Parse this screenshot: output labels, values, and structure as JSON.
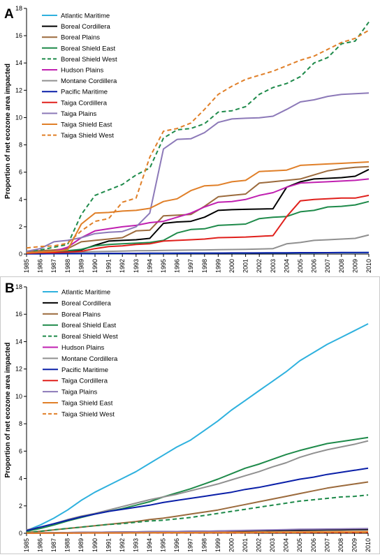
{
  "chart_data": [
    {
      "panel": "A",
      "type": "line",
      "ylabel": "Proportion of net ecozone area impacted",
      "ylim": [
        0,
        18
      ],
      "yticks": [
        0,
        2,
        4,
        6,
        8,
        10,
        12,
        14,
        16,
        18
      ],
      "x": [
        "1985",
        "1986",
        "1987",
        "1988",
        "1989",
        "1990",
        "1991",
        "1992",
        "1993",
        "1994",
        "1995",
        "1996",
        "1997",
        "1998",
        "1999",
        "2000",
        "2001",
        "2002",
        "2003",
        "2004",
        "2005",
        "2006",
        "2007",
        "2008",
        "2009",
        "2010"
      ],
      "grid": false,
      "legend": "top-left",
      "series": [
        {
          "name": "Atlantic Maritime",
          "color": "#2EB1DE",
          "dash": false,
          "values": [
            0.02,
            0.02,
            0.03,
            0.03,
            0.03,
            0.04,
            0.04,
            0.04,
            0.05,
            0.05,
            0.05,
            0.06,
            0.06,
            0.06,
            0.07,
            0.07,
            0.07,
            0.08,
            0.08,
            0.08,
            0.09,
            0.09,
            0.1,
            0.1,
            0.1,
            0.11
          ]
        },
        {
          "name": "Boreal Cordillera",
          "color": "#000000",
          "dash": false,
          "values": [
            0.05,
            0.1,
            0.15,
            0.2,
            0.3,
            0.65,
            0.95,
            1.0,
            1.05,
            1.15,
            2.25,
            2.35,
            2.4,
            2.7,
            3.2,
            3.25,
            3.28,
            3.3,
            3.32,
            4.9,
            5.3,
            5.5,
            5.55,
            5.6,
            5.7,
            6.2
          ]
        },
        {
          "name": "Boreal Plains",
          "color": "#9B6A3C",
          "dash": false,
          "values": [
            0.2,
            0.25,
            0.3,
            0.4,
            0.9,
            1.0,
            1.1,
            1.2,
            1.7,
            1.75,
            2.8,
            2.85,
            2.9,
            3.5,
            4.2,
            4.3,
            4.4,
            5.2,
            5.3,
            5.4,
            5.5,
            5.8,
            6.1,
            6.25,
            6.35,
            6.4
          ]
        },
        {
          "name": "Boreal Shield East",
          "color": "#1E8A4A",
          "dash": false,
          "values": [
            0.1,
            0.15,
            0.2,
            0.25,
            0.35,
            0.6,
            0.7,
            0.75,
            0.8,
            0.85,
            1.0,
            1.55,
            1.8,
            1.85,
            2.1,
            2.15,
            2.2,
            2.6,
            2.7,
            2.75,
            3.1,
            3.2,
            3.45,
            3.5,
            3.6,
            3.85
          ]
        },
        {
          "name": "Boreal Shield West",
          "color": "#1E8A4A",
          "dash": true,
          "values": [
            0.2,
            0.3,
            0.5,
            0.7,
            2.9,
            4.3,
            4.7,
            5.1,
            5.8,
            6.3,
            8.5,
            9.1,
            9.2,
            9.55,
            10.4,
            10.5,
            10.8,
            11.7,
            12.2,
            12.5,
            13.0,
            14.0,
            14.4,
            15.4,
            15.6,
            17.0
          ]
        },
        {
          "name": "Hudson Plains",
          "color": "#C020B0",
          "dash": false,
          "values": [
            0.1,
            0.15,
            0.2,
            0.5,
            1.2,
            1.7,
            1.85,
            2.0,
            2.1,
            2.3,
            2.4,
            2.7,
            3.0,
            3.45,
            3.8,
            3.85,
            4.0,
            4.3,
            4.5,
            4.9,
            5.2,
            5.25,
            5.3,
            5.35,
            5.4,
            5.5
          ]
        },
        {
          "name": "Montane Cordillera",
          "color": "#909090",
          "dash": false,
          "values": [
            0.05,
            0.08,
            0.1,
            0.12,
            0.15,
            0.18,
            0.2,
            0.22,
            0.24,
            0.25,
            0.27,
            0.28,
            0.29,
            0.3,
            0.32,
            0.33,
            0.35,
            0.37,
            0.4,
            0.75,
            0.85,
            1.0,
            1.05,
            1.1,
            1.15,
            1.4
          ]
        },
        {
          "name": "Pacific Maritime",
          "color": "#0A1FA8",
          "dash": false,
          "values": [
            0.02,
            0.02,
            0.03,
            0.03,
            0.04,
            0.04,
            0.05,
            0.05,
            0.05,
            0.06,
            0.06,
            0.06,
            0.07,
            0.07,
            0.07,
            0.08,
            0.08,
            0.08,
            0.09,
            0.09,
            0.1,
            0.1,
            0.1,
            0.11,
            0.11,
            0.12
          ]
        },
        {
          "name": "Taiga Cordillera",
          "color": "#E0201C",
          "dash": false,
          "values": [
            0.05,
            0.1,
            0.1,
            0.15,
            0.2,
            0.4,
            0.55,
            0.6,
            0.7,
            0.75,
            0.95,
            1.0,
            1.05,
            1.1,
            1.2,
            1.22,
            1.25,
            1.3,
            1.35,
            2.75,
            3.9,
            4.0,
            4.05,
            4.1,
            4.1,
            4.3
          ]
        },
        {
          "name": "Taiga Plains",
          "color": "#8C79B8",
          "dash": false,
          "values": [
            0.2,
            0.4,
            0.9,
            1.0,
            1.2,
            1.5,
            1.6,
            1.65,
            2.0,
            3.0,
            7.7,
            8.4,
            8.45,
            8.9,
            9.65,
            9.9,
            9.95,
            9.98,
            10.1,
            10.6,
            11.15,
            11.3,
            11.55,
            11.7,
            11.75,
            11.8
          ]
        },
        {
          "name": "Taiga Shield East",
          "color": "#E07F28",
          "dash": false,
          "values": [
            0.1,
            0.15,
            0.2,
            0.3,
            2.2,
            3.0,
            3.05,
            3.15,
            3.2,
            3.35,
            3.85,
            4.05,
            4.65,
            5.0,
            5.05,
            5.3,
            5.4,
            6.05,
            6.1,
            6.15,
            6.5,
            6.55,
            6.6,
            6.65,
            6.7,
            6.75
          ]
        },
        {
          "name": "Taiga Shield West",
          "color": "#E07F28",
          "dash": true,
          "values": [
            0.45,
            0.55,
            0.6,
            0.8,
            1.7,
            2.4,
            2.6,
            3.8,
            4.1,
            7.1,
            9.0,
            9.2,
            9.6,
            10.6,
            11.7,
            12.3,
            12.8,
            13.1,
            13.4,
            13.8,
            14.2,
            14.5,
            15.0,
            15.5,
            15.8,
            16.4
          ]
        }
      ]
    },
    {
      "panel": "B",
      "type": "line",
      "ylabel": "Proportion of net ecozone area impacted",
      "ylim": [
        0,
        18
      ],
      "yticks": [
        0,
        2,
        4,
        6,
        8,
        10,
        12,
        14,
        16,
        18
      ],
      "x": [
        "1985",
        "1986",
        "1987",
        "1988",
        "1989",
        "1990",
        "1991",
        "1992",
        "1993",
        "1994",
        "1995",
        "1996",
        "1997",
        "1998",
        "1999",
        "2000",
        "2001",
        "2002",
        "2003",
        "2004",
        "2005",
        "2006",
        "2007",
        "2008",
        "2009",
        "2010"
      ],
      "grid": false,
      "legend": "top-left",
      "series": [
        {
          "name": "Atlantic Maritime",
          "color": "#2EB1DE",
          "dash": false,
          "values": [
            0.2,
            0.6,
            1.1,
            1.7,
            2.4,
            3.0,
            3.5,
            4.0,
            4.5,
            5.1,
            5.7,
            6.3,
            6.8,
            7.5,
            8.2,
            9.0,
            9.7,
            10.4,
            11.1,
            11.8,
            12.6,
            13.2,
            13.8,
            14.3,
            14.8,
            15.3
          ]
        },
        {
          "name": "Boreal Cordillera",
          "color": "#000000",
          "dash": false,
          "values": [
            0.02,
            0.03,
            0.04,
            0.05,
            0.06,
            0.07,
            0.08,
            0.09,
            0.1,
            0.11,
            0.12,
            0.13,
            0.14,
            0.15,
            0.16,
            0.17,
            0.18,
            0.19,
            0.2,
            0.21,
            0.22,
            0.23,
            0.24,
            0.25,
            0.26,
            0.27
          ]
        },
        {
          "name": "Boreal Plains",
          "color": "#9B6A3C",
          "dash": false,
          "values": [
            0.05,
            0.15,
            0.25,
            0.35,
            0.45,
            0.55,
            0.65,
            0.75,
            0.85,
            1.0,
            1.1,
            1.25,
            1.4,
            1.55,
            1.7,
            1.9,
            2.1,
            2.3,
            2.5,
            2.7,
            2.9,
            3.1,
            3.3,
            3.45,
            3.6,
            3.75
          ]
        },
        {
          "name": "Boreal Shield East",
          "color": "#1E8A4A",
          "dash": false,
          "values": [
            0.15,
            0.35,
            0.6,
            0.9,
            1.15,
            1.4,
            1.6,
            1.8,
            2.05,
            2.3,
            2.65,
            2.95,
            3.25,
            3.6,
            3.95,
            4.35,
            4.75,
            5.05,
            5.4,
            5.75,
            6.05,
            6.3,
            6.55,
            6.7,
            6.85,
            7.0
          ]
        },
        {
          "name": "Boreal Shield West",
          "color": "#1E8A4A",
          "dash": true,
          "values": [
            0.05,
            0.15,
            0.25,
            0.35,
            0.45,
            0.55,
            0.65,
            0.7,
            0.8,
            0.9,
            0.95,
            1.05,
            1.15,
            1.3,
            1.45,
            1.6,
            1.75,
            1.9,
            2.05,
            2.2,
            2.35,
            2.45,
            2.55,
            2.65,
            2.7,
            2.8
          ]
        },
        {
          "name": "Hudson Plains",
          "color": "#C020B0",
          "dash": false,
          "values": [
            0.01,
            0.01,
            0.02,
            0.02,
            0.02,
            0.03,
            0.03,
            0.03,
            0.04,
            0.04,
            0.04,
            0.05,
            0.05,
            0.05,
            0.06,
            0.06,
            0.06,
            0.07,
            0.07,
            0.07,
            0.08,
            0.08,
            0.08,
            0.09,
            0.09,
            0.1
          ]
        },
        {
          "name": "Montane Cordillera",
          "color": "#909090",
          "dash": false,
          "values": [
            0.25,
            0.45,
            0.7,
            1.0,
            1.25,
            1.45,
            1.7,
            1.95,
            2.2,
            2.45,
            2.65,
            2.85,
            3.1,
            3.35,
            3.6,
            3.9,
            4.2,
            4.5,
            4.85,
            5.15,
            5.55,
            5.85,
            6.1,
            6.3,
            6.5,
            6.75
          ]
        },
        {
          "name": "Pacific Maritime",
          "color": "#0A1FA8",
          "dash": false,
          "values": [
            0.2,
            0.45,
            0.7,
            0.95,
            1.2,
            1.4,
            1.6,
            1.75,
            1.9,
            2.05,
            2.25,
            2.4,
            2.55,
            2.7,
            2.85,
            3.0,
            3.2,
            3.35,
            3.55,
            3.75,
            3.95,
            4.1,
            4.3,
            4.45,
            4.6,
            4.75
          ]
        },
        {
          "name": "Taiga Cordillera",
          "color": "#E0201C",
          "dash": false,
          "values": [
            0.01,
            0.01,
            0.01,
            0.02,
            0.02,
            0.02,
            0.02,
            0.02,
            0.03,
            0.03,
            0.03,
            0.03,
            0.03,
            0.04,
            0.04,
            0.04,
            0.04,
            0.05,
            0.05,
            0.05,
            0.05,
            0.06,
            0.06,
            0.06,
            0.06,
            0.07
          ]
        },
        {
          "name": "Taiga Plains",
          "color": "#8C79B8",
          "dash": false,
          "values": [
            0.02,
            0.03,
            0.04,
            0.05,
            0.06,
            0.07,
            0.08,
            0.09,
            0.1,
            0.11,
            0.12,
            0.13,
            0.14,
            0.15,
            0.17,
            0.19,
            0.21,
            0.23,
            0.25,
            0.27,
            0.29,
            0.3,
            0.31,
            0.32,
            0.33,
            0.34
          ]
        },
        {
          "name": "Taiga Shield East",
          "color": "#E07F28",
          "dash": false,
          "values": [
            0.01,
            0.01,
            0.02,
            0.02,
            0.02,
            0.03,
            0.03,
            0.03,
            0.04,
            0.04,
            0.05,
            0.05,
            0.05,
            0.06,
            0.06,
            0.07,
            0.07,
            0.08,
            0.08,
            0.09,
            0.09,
            0.1,
            0.1,
            0.11,
            0.11,
            0.12
          ]
        },
        {
          "name": "Taiga Shield West",
          "color": "#E07F28",
          "dash": true,
          "values": [
            0.01,
            0.01,
            0.01,
            0.01,
            0.02,
            0.02,
            0.02,
            0.02,
            0.02,
            0.03,
            0.03,
            0.03,
            0.03,
            0.04,
            0.04,
            0.04,
            0.04,
            0.05,
            0.05,
            0.05,
            0.05,
            0.06,
            0.06,
            0.06,
            0.06,
            0.07
          ]
        }
      ]
    }
  ]
}
